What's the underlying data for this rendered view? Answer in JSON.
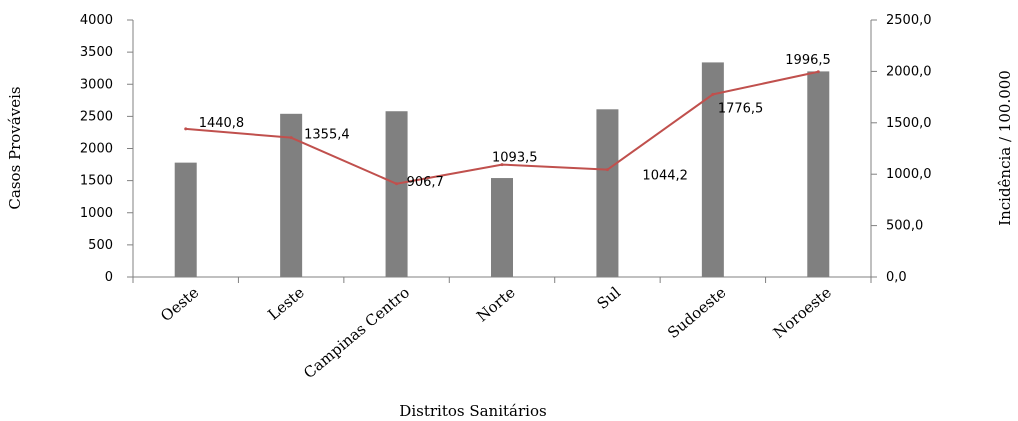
{
  "chart_data": {
    "type": "bar",
    "categories": [
      "Oeste",
      "Leste",
      "Campinas Centro",
      "Norte",
      "Sul",
      "Sudoeste",
      "Noroeste"
    ],
    "series": [
      {
        "name": "Casos Prováveis",
        "type": "bar",
        "axis": "left",
        "color": "#808080",
        "values": [
          1780,
          2540,
          2580,
          1540,
          2610,
          3340,
          3200
        ]
      },
      {
        "name": "Incidência / 100.000",
        "type": "line",
        "axis": "right",
        "color": "#c0504d",
        "values": [
          1440.8,
          1355.4,
          906.7,
          1093.5,
          1044.2,
          1776.5,
          1996.5
        ],
        "labels": [
          "1440,8",
          "1355,4",
          "906,7",
          "1093,5",
          "1044,2",
          "1776,5",
          "1996,5"
        ]
      }
    ],
    "xlabel": "Distritos Sanitários",
    "ylabel": "Casos Prováveis",
    "y2label": "Incidência / 100.000",
    "ylim": [
      0,
      4000
    ],
    "y2lim": [
      0,
      2500
    ],
    "yticks": [
      "0",
      "500",
      "1000",
      "1500",
      "2000",
      "2500",
      "3000",
      "3500",
      "4000"
    ],
    "y2ticks": [
      "0,0",
      "500,0",
      "1000,0",
      "1500,0",
      "2000,0",
      "2500,0"
    ],
    "grid": false,
    "legend": "none"
  }
}
